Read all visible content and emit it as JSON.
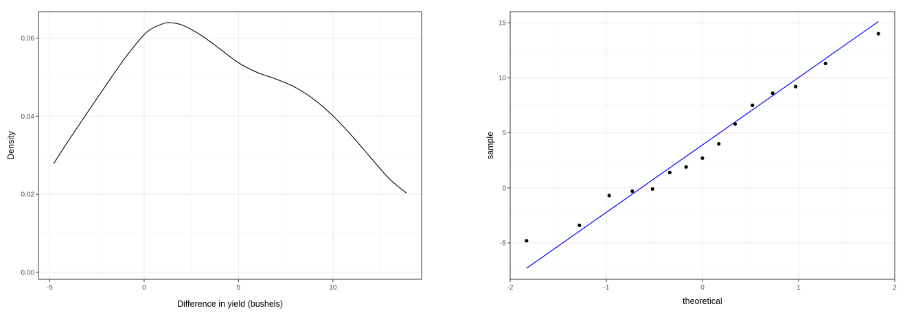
{
  "chart_data": [
    {
      "type": "line",
      "xlabel": "Difference in yield (bushels)",
      "ylabel": "Density",
      "xlim": [
        -5.6,
        14.7
      ],
      "ylim": [
        -0.0018,
        0.0668
      ],
      "x_ticks": [
        -5,
        0,
        5,
        10
      ],
      "x_tick_labels": [
        "-5",
        "0",
        "5",
        "10"
      ],
      "y_ticks": [
        0.0,
        0.02,
        0.04,
        0.06
      ],
      "y_tick_labels": [
        "0.00",
        "0.02",
        "0.04",
        "0.06"
      ],
      "grid": true,
      "line_color": "#000000",
      "series": [
        {
          "x": [
            -4.8,
            -4.0,
            -3.0,
            -2.0,
            -1.0,
            0.0,
            0.5,
            1.0,
            1.3,
            2.0,
            3.0,
            4.0,
            5.0,
            6.0,
            7.0,
            8.0,
            9.0,
            10.0,
            11.0,
            12.0,
            13.0,
            13.9
          ],
          "y": [
            0.0278,
            0.0338,
            0.041,
            0.0481,
            0.055,
            0.0609,
            0.0627,
            0.0637,
            0.064,
            0.0634,
            0.0608,
            0.0573,
            0.0537,
            0.0512,
            0.0495,
            0.0474,
            0.0443,
            0.0401,
            0.035,
            0.0294,
            0.0239,
            0.0203
          ]
        }
      ]
    },
    {
      "type": "scatter",
      "xlabel": "theoretical",
      "ylabel": "sample",
      "xlim": [
        -2.0,
        2.0
      ],
      "ylim": [
        -8.3,
        16.0
      ],
      "x_ticks": [
        -2,
        -1,
        0,
        1,
        2
      ],
      "x_tick_labels": [
        "-2",
        "-1",
        "0",
        "1",
        "2"
      ],
      "y_ticks": [
        -5,
        0,
        5,
        10,
        15
      ],
      "y_tick_labels": [
        "-5",
        "0",
        "5",
        "10",
        "15"
      ],
      "grid": true,
      "point_color": "#000000",
      "points": {
        "x": [
          -1.83,
          -1.28,
          -0.97,
          -0.73,
          -0.52,
          -0.34,
          -0.17,
          0.0,
          0.17,
          0.34,
          0.52,
          0.73,
          0.97,
          1.28,
          1.83
        ],
        "y": [
          -4.8,
          -3.4,
          -0.7,
          -0.3,
          -0.1,
          1.4,
          1.9,
          2.7,
          4.0,
          5.8,
          7.5,
          8.6,
          9.2,
          11.3,
          14.0
        ]
      },
      "reference_line": {
        "x": [
          -1.83,
          1.83
        ],
        "y": [
          -7.3,
          15.1
        ],
        "color": "#0000ff"
      }
    }
  ]
}
